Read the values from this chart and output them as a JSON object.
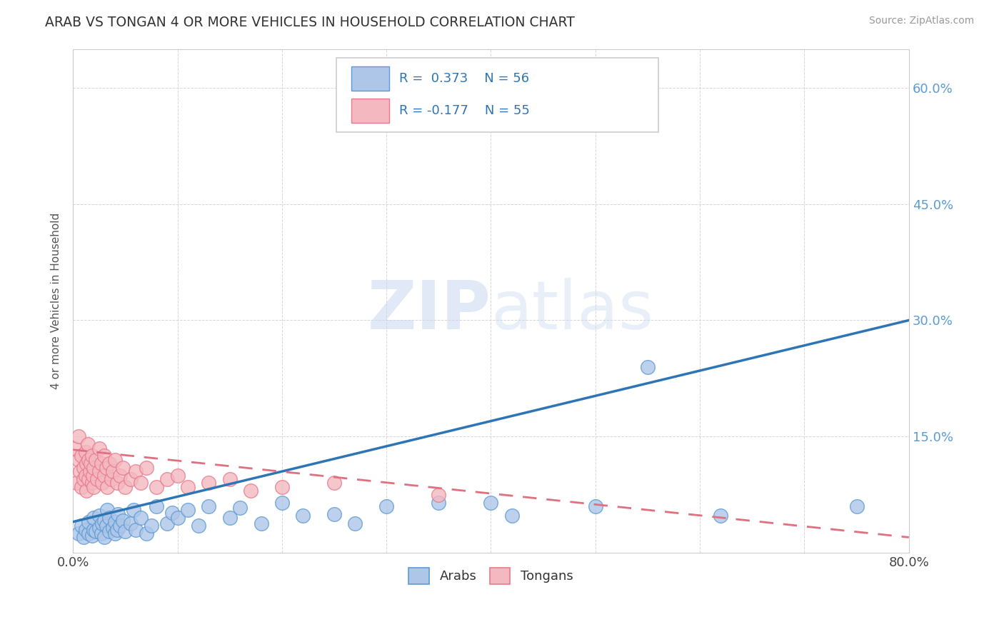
{
  "title": "ARAB VS TONGAN 4 OR MORE VEHICLES IN HOUSEHOLD CORRELATION CHART",
  "source_text": "Source: ZipAtlas.com",
  "ylabel": "4 or more Vehicles in Household",
  "xlim": [
    0.0,
    0.8
  ],
  "ylim": [
    0.0,
    0.65
  ],
  "xticks": [
    0.0,
    0.1,
    0.2,
    0.3,
    0.4,
    0.5,
    0.6,
    0.7,
    0.8
  ],
  "xtick_labels": [
    "0.0%",
    "",
    "",
    "",
    "",
    "",
    "",
    "",
    "80.0%"
  ],
  "yticks": [
    0.0,
    0.15,
    0.3,
    0.45,
    0.6
  ],
  "ytick_labels": [
    "",
    "15.0%",
    "30.0%",
    "45.0%",
    "60.0%"
  ],
  "arab_color": "#aec6e8",
  "tongan_color": "#f4b8c1",
  "arab_edge_color": "#5b9bd5",
  "tongan_edge_color": "#e87a8a",
  "trend_arab_color": "#2e75b6",
  "trend_tongan_color": "#e07080",
  "R_arab": 0.373,
  "N_arab": 56,
  "R_tongan": -0.177,
  "N_tongan": 55,
  "watermark": "ZIPatlas",
  "legend_entries": [
    "Arabs",
    "Tongans"
  ],
  "background_color": "#ffffff",
  "grid_color": "#cccccc",
  "arab_dots_x": [
    0.005,
    0.008,
    0.01,
    0.012,
    0.015,
    0.015,
    0.018,
    0.02,
    0.02,
    0.022,
    0.025,
    0.025,
    0.027,
    0.028,
    0.03,
    0.03,
    0.032,
    0.033,
    0.035,
    0.035,
    0.038,
    0.04,
    0.04,
    0.042,
    0.043,
    0.045,
    0.048,
    0.05,
    0.055,
    0.058,
    0.06,
    0.065,
    0.07,
    0.075,
    0.08,
    0.09,
    0.095,
    0.1,
    0.11,
    0.12,
    0.13,
    0.15,
    0.16,
    0.18,
    0.2,
    0.22,
    0.25,
    0.27,
    0.3,
    0.35,
    0.4,
    0.42,
    0.5,
    0.55,
    0.62,
    0.75
  ],
  "arab_dots_y": [
    0.025,
    0.035,
    0.02,
    0.03,
    0.025,
    0.04,
    0.022,
    0.03,
    0.045,
    0.028,
    0.032,
    0.048,
    0.025,
    0.038,
    0.02,
    0.042,
    0.035,
    0.055,
    0.028,
    0.045,
    0.032,
    0.025,
    0.04,
    0.03,
    0.05,
    0.035,
    0.042,
    0.028,
    0.038,
    0.055,
    0.03,
    0.045,
    0.025,
    0.035,
    0.06,
    0.038,
    0.052,
    0.045,
    0.055,
    0.035,
    0.06,
    0.045,
    0.058,
    0.038,
    0.065,
    0.048,
    0.05,
    0.038,
    0.06,
    0.065,
    0.065,
    0.048,
    0.06,
    0.24,
    0.048,
    0.06
  ],
  "tongan_dots_x": [
    0.002,
    0.003,
    0.005,
    0.005,
    0.007,
    0.008,
    0.008,
    0.01,
    0.01,
    0.012,
    0.012,
    0.013,
    0.013,
    0.014,
    0.015,
    0.015,
    0.016,
    0.017,
    0.018,
    0.018,
    0.019,
    0.02,
    0.02,
    0.022,
    0.023,
    0.025,
    0.025,
    0.027,
    0.028,
    0.03,
    0.03,
    0.032,
    0.033,
    0.035,
    0.037,
    0.038,
    0.04,
    0.042,
    0.045,
    0.048,
    0.05,
    0.055,
    0.06,
    0.065,
    0.07,
    0.08,
    0.09,
    0.1,
    0.11,
    0.13,
    0.15,
    0.17,
    0.2,
    0.25,
    0.35
  ],
  "tongan_dots_y": [
    0.135,
    0.09,
    0.12,
    0.15,
    0.105,
    0.125,
    0.085,
    0.11,
    0.095,
    0.13,
    0.1,
    0.115,
    0.08,
    0.14,
    0.095,
    0.12,
    0.105,
    0.115,
    0.09,
    0.125,
    0.1,
    0.11,
    0.085,
    0.12,
    0.095,
    0.135,
    0.105,
    0.115,
    0.09,
    0.125,
    0.1,
    0.11,
    0.085,
    0.115,
    0.095,
    0.105,
    0.12,
    0.09,
    0.1,
    0.11,
    0.085,
    0.095,
    0.105,
    0.09,
    0.11,
    0.085,
    0.095,
    0.1,
    0.085,
    0.09,
    0.095,
    0.08,
    0.085,
    0.09,
    0.075
  ],
  "arab_trend_x": [
    0.0,
    0.8
  ],
  "arab_trend_y": [
    0.04,
    0.3
  ],
  "tongan_trend_x": [
    0.0,
    0.8
  ],
  "tongan_trend_y": [
    0.133,
    0.02
  ]
}
